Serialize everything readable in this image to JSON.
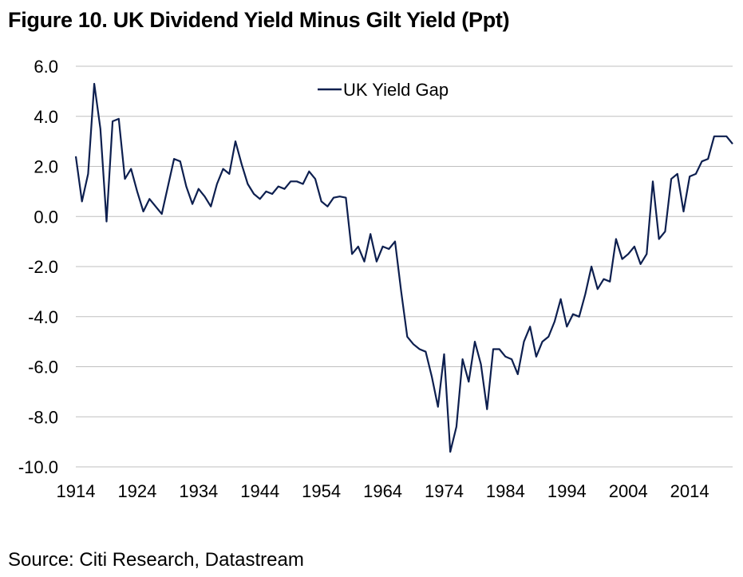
{
  "title": "Figure 10. UK Dividend Yield Minus Gilt Yield (Ppt)",
  "source": "Source: Citi Research, Datastream",
  "chart_data": {
    "type": "line",
    "title": "Figure 10. UK Dividend Yield Minus Gilt Yield (Ppt)",
    "xlabel": "",
    "ylabel": "",
    "ylim": [
      -10,
      6
    ],
    "xlim": [
      1914,
      2021
    ],
    "y_ticks": [
      "6.0",
      "4.0",
      "2.0",
      "0.0",
      "-2.0",
      "-4.0",
      "-6.0",
      "-8.0",
      "-10.0"
    ],
    "x_ticks": [
      "1914",
      "1924",
      "1934",
      "1944",
      "1954",
      "1964",
      "1974",
      "1984",
      "1994",
      "2004",
      "2014"
    ],
    "grid": true,
    "legend_position": "top-center",
    "series": [
      {
        "name": "UK Yield Gap",
        "color": "#0d1f4f",
        "x": [
          1914,
          1915,
          1916,
          1917,
          1918,
          1919,
          1920,
          1921,
          1922,
          1923,
          1924,
          1925,
          1926,
          1927,
          1928,
          1929,
          1930,
          1931,
          1932,
          1933,
          1934,
          1935,
          1936,
          1937,
          1938,
          1939,
          1940,
          1941,
          1942,
          1943,
          1944,
          1945,
          1946,
          1947,
          1948,
          1949,
          1950,
          1951,
          1952,
          1953,
          1954,
          1955,
          1956,
          1957,
          1958,
          1959,
          1960,
          1961,
          1962,
          1963,
          1964,
          1965,
          1966,
          1967,
          1968,
          1969,
          1970,
          1971,
          1972,
          1973,
          1974,
          1975,
          1976,
          1977,
          1978,
          1979,
          1980,
          1981,
          1982,
          1983,
          1984,
          1985,
          1986,
          1987,
          1988,
          1989,
          1990,
          1991,
          1992,
          1993,
          1994,
          1995,
          1996,
          1997,
          1998,
          1999,
          2000,
          2001,
          2002,
          2003,
          2004,
          2005,
          2006,
          2007,
          2008,
          2009,
          2010,
          2011,
          2012,
          2013,
          2014,
          2015,
          2016,
          2017,
          2018,
          2019,
          2020,
          2021
        ],
        "values": [
          2.4,
          0.6,
          1.7,
          5.3,
          3.5,
          -0.2,
          3.8,
          3.9,
          1.5,
          1.9,
          1.0,
          0.2,
          0.7,
          0.4,
          0.1,
          1.2,
          2.3,
          2.2,
          1.2,
          0.5,
          1.1,
          0.8,
          0.4,
          1.3,
          1.9,
          1.7,
          3.0,
          2.1,
          1.3,
          0.9,
          0.7,
          1.0,
          0.9,
          1.2,
          1.1,
          1.4,
          1.4,
          1.3,
          1.8,
          1.5,
          0.6,
          0.4,
          0.75,
          0.8,
          0.75,
          -1.5,
          -1.2,
          -1.8,
          -0.7,
          -1.8,
          -1.2,
          -1.3,
          -1.0,
          -3.0,
          -4.8,
          -5.1,
          -5.3,
          -5.4,
          -6.4,
          -7.6,
          -5.5,
          -9.4,
          -8.4,
          -5.7,
          -6.6,
          -5.0,
          -5.9,
          -7.7,
          -5.3,
          -5.3,
          -5.6,
          -5.7,
          -6.3,
          -5.0,
          -4.4,
          -5.6,
          -5.0,
          -4.8,
          -4.2,
          -3.3,
          -4.4,
          -3.9,
          -4.0,
          -3.1,
          -2.0,
          -2.9,
          -2.5,
          -2.6,
          -0.9,
          -1.7,
          -1.5,
          -1.2,
          -1.9,
          -1.5,
          1.4,
          -0.9,
          -0.6,
          1.5,
          1.7,
          0.2,
          1.6,
          1.7,
          2.2,
          2.3,
          3.2,
          3.2,
          3.2,
          2.9
        ]
      }
    ]
  }
}
